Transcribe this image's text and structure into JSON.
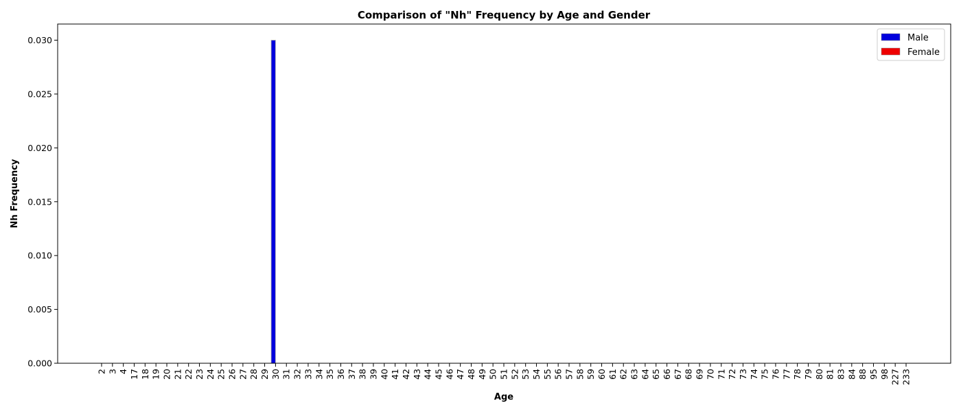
{
  "chart_data": {
    "type": "bar",
    "title": "Comparison of \"Nh\" Frequency by Age and Gender",
    "xlabel": "Age",
    "ylabel": "Nh Frequency",
    "ylim": [
      0,
      0.0315
    ],
    "yticks": [
      "0.000",
      "0.005",
      "0.010",
      "0.015",
      "0.020",
      "0.025",
      "0.030"
    ],
    "categories": [
      "2",
      "3",
      "4",
      "17",
      "18",
      "19",
      "20",
      "21",
      "22",
      "23",
      "24",
      "25",
      "26",
      "27",
      "28",
      "29",
      "30",
      "31",
      "32",
      "33",
      "34",
      "35",
      "36",
      "37",
      "38",
      "39",
      "40",
      "41",
      "42",
      "43",
      "44",
      "45",
      "46",
      "47",
      "48",
      "49",
      "50",
      "51",
      "52",
      "53",
      "54",
      "55",
      "56",
      "57",
      "58",
      "59",
      "60",
      "61",
      "62",
      "63",
      "64",
      "65",
      "66",
      "67",
      "68",
      "69",
      "70",
      "71",
      "72",
      "73",
      "74",
      "75",
      "76",
      "77",
      "78",
      "79",
      "80",
      "81",
      "83",
      "84",
      "88",
      "95",
      "98",
      "227",
      "233"
    ],
    "series": [
      {
        "name": "Male",
        "color": "#0000dd",
        "nonzero": {
          "30": 0.03
        }
      },
      {
        "name": "Female",
        "color": "#ee0000",
        "nonzero": {}
      }
    ],
    "legend_position": "top-right",
    "grid": false
  }
}
